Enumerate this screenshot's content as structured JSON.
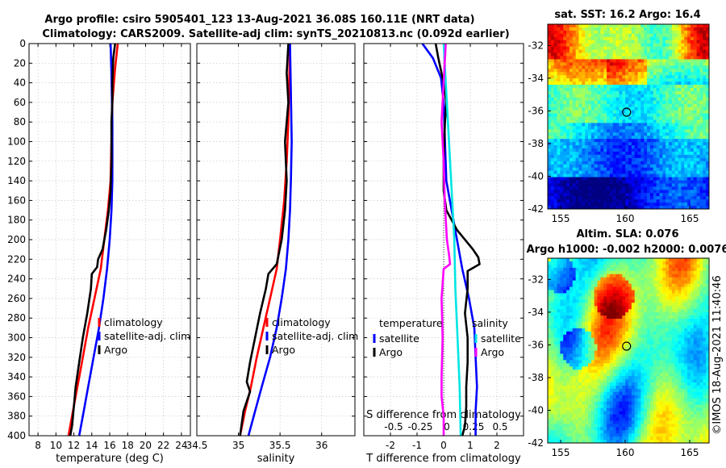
{
  "title": {
    "line1": "Argo profile: csiro 5905401_123 13-Aug-2021 36.08S 160.11E (NRT data)",
    "line2": "Climatology: CARS2009. Satellite-adj clim: synTS_20210813.nc (0.092d earlier)"
  },
  "colors": {
    "climatology": "#ff0000",
    "satellite": "#0000ff",
    "argo": "#000000",
    "sat_salinity": "#00e5e5",
    "argo_salinity": "#ff00ff"
  },
  "depth_ticks": [
    0,
    20,
    40,
    60,
    80,
    100,
    120,
    140,
    160,
    180,
    200,
    220,
    240,
    260,
    280,
    300,
    320,
    340,
    360,
    380,
    400
  ],
  "chart_data": [
    {
      "type": "line",
      "name": "temperature",
      "xlabel": "temperature (deg C)",
      "ylabel": "depth",
      "xlim": [
        7,
        25
      ],
      "ylim": [
        0,
        400
      ],
      "xticks": [
        8,
        10,
        12,
        14,
        16,
        18,
        20,
        22,
        24
      ],
      "legend": {
        "position": "right-middle",
        "entries": [
          "climatology",
          "satellite-adj. clim",
          "Argo"
        ]
      },
      "series": [
        {
          "name": "climatology",
          "color": "red",
          "points": [
            [
              16.9,
              0
            ],
            [
              16.6,
              25
            ],
            [
              16.3,
              60
            ],
            [
              16.2,
              100
            ],
            [
              16.1,
              140
            ],
            [
              15.8,
              170
            ],
            [
              15.4,
              200
            ],
            [
              15.0,
              230
            ],
            [
              14.3,
              260
            ],
            [
              13.6,
              290
            ],
            [
              13.0,
              320
            ],
            [
              12.4,
              350
            ],
            [
              11.9,
              375
            ],
            [
              11.4,
              400
            ]
          ]
        },
        {
          "name": "satellite-adj. clim",
          "color": "blue",
          "points": [
            [
              16.1,
              0
            ],
            [
              16.2,
              30
            ],
            [
              16.3,
              80
            ],
            [
              16.3,
              120
            ],
            [
              16.3,
              140
            ],
            [
              16.2,
              170
            ],
            [
              16.0,
              200
            ],
            [
              15.7,
              230
            ],
            [
              15.3,
              260
            ],
            [
              14.8,
              290
            ],
            [
              14.2,
              320
            ],
            [
              13.6,
              350
            ],
            [
              13.1,
              375
            ],
            [
              12.6,
              400
            ]
          ]
        },
        {
          "name": "Argo",
          "color": "black",
          "points": [
            [
              16.6,
              0
            ],
            [
              16.4,
              15
            ],
            [
              16.3,
              40
            ],
            [
              16.3,
              60
            ],
            [
              16.2,
              80
            ],
            [
              16.2,
              120
            ],
            [
              16.1,
              150
            ],
            [
              15.9,
              170
            ],
            [
              15.6,
              190
            ],
            [
              15.2,
              210
            ],
            [
              14.7,
              220
            ],
            [
              14.6,
              228
            ],
            [
              14.0,
              235
            ],
            [
              13.9,
              250
            ],
            [
              13.5,
              275
            ],
            [
              13.0,
              300
            ],
            [
              12.6,
              325
            ],
            [
              12.2,
              350
            ],
            [
              12.0,
              370
            ],
            [
              11.8,
              390
            ],
            [
              11.6,
              400
            ]
          ]
        }
      ]
    },
    {
      "type": "line",
      "name": "salinity",
      "xlabel": "salinity",
      "ylabel": "depth",
      "xlim": [
        34.5,
        36.4
      ],
      "ylim": [
        0,
        400
      ],
      "xticks": [
        34.5,
        35,
        35.5,
        36
      ],
      "xticklabels": [
        "34.5",
        "35",
        "35.5",
        "36"
      ],
      "legend": {
        "position": "right-middle",
        "entries": [
          "climatology",
          "satellite-adj. clim",
          "Argo"
        ]
      },
      "series": [
        {
          "name": "climatology",
          "color": "red",
          "points": [
            [
              35.62,
              0
            ],
            [
              35.61,
              40
            ],
            [
              35.6,
              80
            ],
            [
              35.58,
              120
            ],
            [
              35.55,
              160
            ],
            [
              35.5,
              200
            ],
            [
              35.46,
              230
            ],
            [
              35.38,
              260
            ],
            [
              35.3,
              290
            ],
            [
              35.22,
              320
            ],
            [
              35.15,
              350
            ],
            [
              35.08,
              375
            ],
            [
              35.02,
              400
            ]
          ]
        },
        {
          "name": "satellite-adj. clim",
          "color": "blue",
          "points": [
            [
              35.62,
              0
            ],
            [
              35.63,
              50
            ],
            [
              35.64,
              100
            ],
            [
              35.63,
              140
            ],
            [
              35.62,
              170
            ],
            [
              35.6,
              200
            ],
            [
              35.57,
              230
            ],
            [
              35.52,
              260
            ],
            [
              35.46,
              290
            ],
            [
              35.38,
              320
            ],
            [
              35.28,
              350
            ],
            [
              35.2,
              375
            ],
            [
              35.12,
              400
            ]
          ]
        },
        {
          "name": "Argo",
          "color": "black",
          "points": [
            [
              35.6,
              0
            ],
            [
              35.58,
              30
            ],
            [
              35.6,
              60
            ],
            [
              35.56,
              100
            ],
            [
              35.58,
              140
            ],
            [
              35.56,
              170
            ],
            [
              35.52,
              200
            ],
            [
              35.46,
              225
            ],
            [
              35.36,
              235
            ],
            [
              35.33,
              250
            ],
            [
              35.26,
              275
            ],
            [
              35.2,
              300
            ],
            [
              35.14,
              325
            ],
            [
              35.1,
              345
            ],
            [
              35.14,
              355
            ],
            [
              35.06,
              375
            ],
            [
              35.02,
              400
            ]
          ]
        }
      ]
    },
    {
      "type": "line",
      "name": "difference",
      "xlabel": "T difference from climatology",
      "xlabel2": "S difference from climatology",
      "ylabel": "depth",
      "xlim": [
        -3,
        3
      ],
      "ylim": [
        0,
        400
      ],
      "xticks": [
        -2,
        -1,
        0,
        1,
        2
      ],
      "xticklabels": [
        "-2",
        "-1",
        "0",
        "1",
        "2"
      ],
      "s_ticks": [
        -0.5,
        -0.25,
        0,
        0.25,
        0.5
      ],
      "s_ticklabels": [
        "-0.5",
        "-0.25",
        "0",
        "0.25",
        "0.5"
      ],
      "legend_left": {
        "title": "temperature",
        "entries": [
          "satellite",
          "Argo"
        ]
      },
      "legend_right": {
        "title": "salinity",
        "entries": [
          "satellite",
          "Argo"
        ]
      },
      "series": [
        {
          "name": "satellite T",
          "color": "blue",
          "points": [
            [
              -0.8,
              0
            ],
            [
              -0.4,
              15
            ],
            [
              -0.1,
              35
            ],
            [
              0.0,
              60
            ],
            [
              0.05,
              100
            ],
            [
              0.1,
              140
            ],
            [
              0.3,
              170
            ],
            [
              0.5,
              200
            ],
            [
              0.7,
              230
            ],
            [
              0.95,
              260
            ],
            [
              1.15,
              290
            ],
            [
              1.2,
              320
            ],
            [
              1.25,
              350
            ],
            [
              1.2,
              375
            ],
            [
              1.2,
              400
            ]
          ]
        },
        {
          "name": "Argo T",
          "color": "black",
          "points": [
            [
              -0.3,
              0
            ],
            [
              -0.2,
              15
            ],
            [
              0.0,
              40
            ],
            [
              0.1,
              60
            ],
            [
              0.05,
              80
            ],
            [
              0.0,
              120
            ],
            [
              0.0,
              150
            ],
            [
              0.1,
              170
            ],
            [
              0.5,
              190
            ],
            [
              1.1,
              210
            ],
            [
              1.3,
              218
            ],
            [
              1.35,
              225
            ],
            [
              0.9,
              232
            ],
            [
              0.9,
              250
            ],
            [
              0.8,
              275
            ],
            [
              0.9,
              300
            ],
            [
              0.9,
              325
            ],
            [
              0.85,
              350
            ],
            [
              0.85,
              370
            ],
            [
              0.8,
              390
            ],
            [
              0.7,
              400
            ]
          ]
        },
        {
          "name": "satellite S",
          "color": "cyan",
          "points": [
            [
              0.0,
              0
            ],
            [
              0.02,
              40
            ],
            [
              0.05,
              100
            ],
            [
              0.08,
              160
            ],
            [
              0.1,
              200
            ],
            [
              0.11,
              250
            ],
            [
              0.13,
              300
            ],
            [
              0.15,
              350
            ],
            [
              0.16,
              400
            ]
          ]
        },
        {
          "name": "Argo S",
          "color": "magenta",
          "points": [
            [
              0.02,
              0
            ],
            [
              0.0,
              40
            ],
            [
              -0.02,
              80
            ],
            [
              0.0,
              120
            ],
            [
              0.01,
              160
            ],
            [
              0.03,
              200
            ],
            [
              0.05,
              215
            ],
            [
              0.06,
              225
            ],
            [
              0.0,
              230
            ],
            [
              -0.02,
              260
            ],
            [
              -0.01,
              300
            ],
            [
              -0.02,
              340
            ],
            [
              -0.02,
              360
            ],
            [
              0.0,
              380
            ],
            [
              0.0,
              400
            ]
          ]
        }
      ]
    },
    {
      "type": "heatmap",
      "name": "sst_map",
      "title": "sat. SST: 16.2 Argo: 16.4",
      "xlim": [
        154,
        166.5
      ],
      "ylim": [
        -42,
        -30.7
      ],
      "xticks": [
        155,
        160,
        165
      ],
      "yticks": [
        -32,
        -34,
        -36,
        -38,
        -40,
        -42
      ],
      "marker": {
        "lon": 160.11,
        "lat": -36.08
      }
    },
    {
      "type": "heatmap",
      "name": "sla_map",
      "title": "Altim. SLA: 0.076",
      "subtitle": "Argo h1000: -0.002 h2000: 0.0076",
      "xlim": [
        154,
        166.5
      ],
      "ylim": [
        -42,
        -30.7
      ],
      "xticks": [
        155,
        160,
        165
      ],
      "yticks": [
        -32,
        -34,
        -36,
        -38,
        -40,
        -42
      ],
      "marker": {
        "lon": 160.11,
        "lat": -36.08
      }
    }
  ],
  "watermark": "©IMOS 18-Aug-2021 11:40:46"
}
